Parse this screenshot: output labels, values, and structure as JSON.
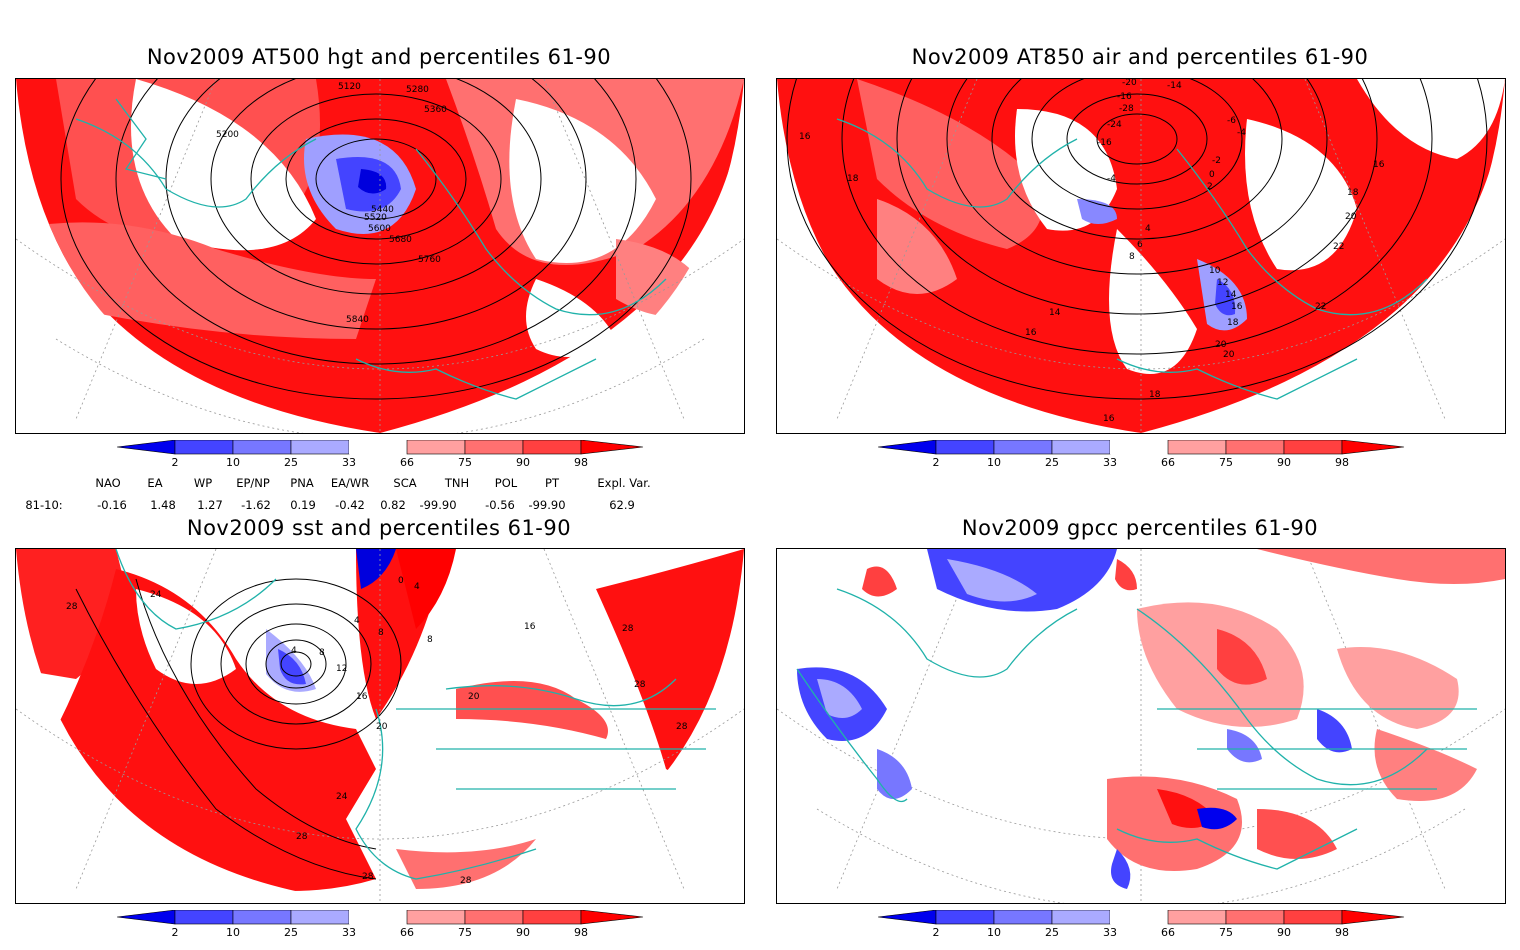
{
  "panels": [
    {
      "id": "hgt",
      "title": "Nov2009 AT500 hgt and percentiles 61-90",
      "contour_labels": [
        "5120",
        "5280",
        "5360",
        "5200",
        "5440",
        "5520",
        "5600",
        "5680",
        "5760",
        "5840"
      ]
    },
    {
      "id": "air",
      "title": "Nov2009 AT850 air and percentiles 61-90",
      "contour_labels": [
        "-20",
        "-14",
        "-16",
        "-28",
        "-24",
        "-16",
        "-6",
        "-4",
        "-2",
        "0",
        "2",
        "-4",
        "4",
        "6",
        "8",
        "16",
        "18",
        "20",
        "22",
        "10",
        "12",
        "14",
        "16",
        "18",
        "20",
        "22",
        "14",
        "16",
        "18",
        "16",
        "16",
        "18",
        "20"
      ]
    },
    {
      "id": "sst",
      "title": "Nov2009 sst and percentiles 61-90",
      "contour_labels": [
        "28",
        "24",
        "0",
        "4",
        "4",
        "8",
        "8",
        "4",
        "8",
        "12",
        "16",
        "20",
        "20",
        "24",
        "28",
        "28",
        "28",
        "28",
        "28",
        "28",
        "16"
      ]
    },
    {
      "id": "gpcc",
      "title": "Nov2009 gpcc percentiles 61-90",
      "contour_labels": []
    }
  ],
  "colorbar": {
    "labels": [
      "2",
      "10",
      "25",
      "33",
      "66",
      "75",
      "90",
      "98"
    ],
    "colors": {
      "blue_dark": "#0000ee",
      "blue_mid": "#4444ff",
      "blue_light": "#7777ff",
      "blue_pale": "#aaaaff",
      "red_pale": "#ffa0a0",
      "red_light": "#ff7070",
      "red_mid": "#ff4040",
      "red_dark": "#ff0000"
    }
  },
  "indices": {
    "headers": [
      "NAO",
      "EA",
      "WP",
      "EP/NP",
      "PNA",
      "EA/WR",
      "SCA",
      "TNH",
      "POL",
      "PT",
      "Expl. Var."
    ],
    "row_label": "81-10:",
    "values": [
      "-0.16",
      "1.48",
      "1.27",
      "-1.62",
      "0.19",
      "-0.42",
      "0.82",
      "-99.90",
      "-0.56",
      "-99.90",
      "62.9"
    ]
  },
  "colors": {
    "coastline": "#20b2aa",
    "contour": "#000000",
    "grid": "#999999"
  }
}
